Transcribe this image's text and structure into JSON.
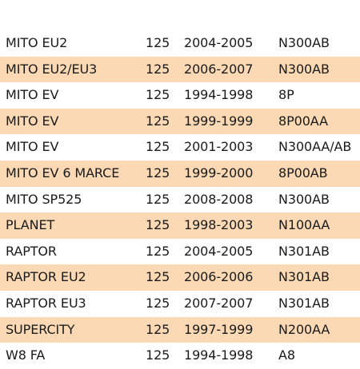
{
  "colors": {
    "alt_row": "#fbd9b4",
    "plain_row": "#ffffff",
    "text": "#1a1a1a"
  },
  "rows": [
    {
      "model": "MITO EU2",
      "cc": "125",
      "years": "2004-2005",
      "code": "N300AB"
    },
    {
      "model": "MITO EU2/EU3",
      "cc": "125",
      "years": "2006-2007",
      "code": "N300AB"
    },
    {
      "model": "MITO EV",
      "cc": "125",
      "years": "1994-1998",
      "code": "8P"
    },
    {
      "model": "MITO EV",
      "cc": "125",
      "years": "1999-1999",
      "code": "8P00AA"
    },
    {
      "model": "MITO EV",
      "cc": "125",
      "years": "2001-2003",
      "code": "N300AA/AB"
    },
    {
      "model": "MITO EV 6 MARCE",
      "cc": "125",
      "years": "1999-2000",
      "code": "8P00AB"
    },
    {
      "model": "MITO SP525",
      "cc": "125",
      "years": "2008-2008",
      "code": "N300AB"
    },
    {
      "model": "PLANET",
      "cc": "125",
      "years": "1998-2003",
      "code": "N100AA"
    },
    {
      "model": "RAPTOR",
      "cc": "125",
      "years": "2004-2005",
      "code": "N301AB"
    },
    {
      "model": "RAPTOR EU2",
      "cc": "125",
      "years": "2006-2006",
      "code": "N301AB"
    },
    {
      "model": "RAPTOR EU3",
      "cc": "125",
      "years": "2007-2007",
      "code": "N301AB"
    },
    {
      "model": "SUPERCITY",
      "cc": "125",
      "years": "1997-1999",
      "code": "N200AA"
    },
    {
      "model": "W8 FA",
      "cc": "125",
      "years": "1994-1998",
      "code": "A8"
    }
  ]
}
